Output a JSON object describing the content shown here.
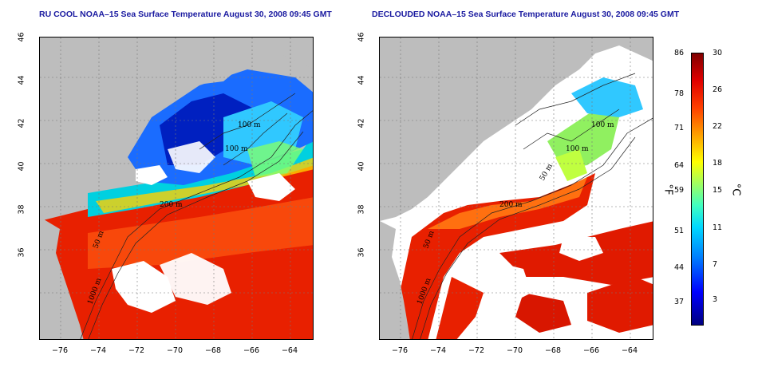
{
  "titles": {
    "left": "RU COOL NOAA–15 Sea Surface Temperature August 30, 2008 09:45 GMT",
    "right": "DECLOUDED NOAA–15 Sea Surface Temperature August 30, 2008 09:45 GMT"
  },
  "axes": {
    "lat_ticks": [
      "46",
      "44",
      "42",
      "40",
      "38",
      "36"
    ],
    "lon_ticks": [
      "−76",
      "−74",
      "−72",
      "−70",
      "−68",
      "−66",
      "−64"
    ]
  },
  "contour_labels": {
    "left": [
      "100 m",
      "100 m",
      "200 m",
      "50 m",
      "1000 m"
    ],
    "right": [
      "100 m",
      "100 m",
      "50 m",
      "200 m",
      "50 m",
      "1000 m"
    ]
  },
  "colorbar": {
    "fahrenheit": [
      "86",
      "78",
      "71",
      "64",
      "59",
      "51",
      "44",
      "37"
    ],
    "celsius": [
      "30",
      "26",
      "22",
      "18",
      "15",
      "11",
      "7",
      "3"
    ],
    "unit_f": "°F",
    "unit_c": "°C"
  },
  "colors": {
    "land": "#bdbdbd",
    "cloud": "#ffffff",
    "warm": "#e81a00",
    "cool": "#1a4cff"
  }
}
